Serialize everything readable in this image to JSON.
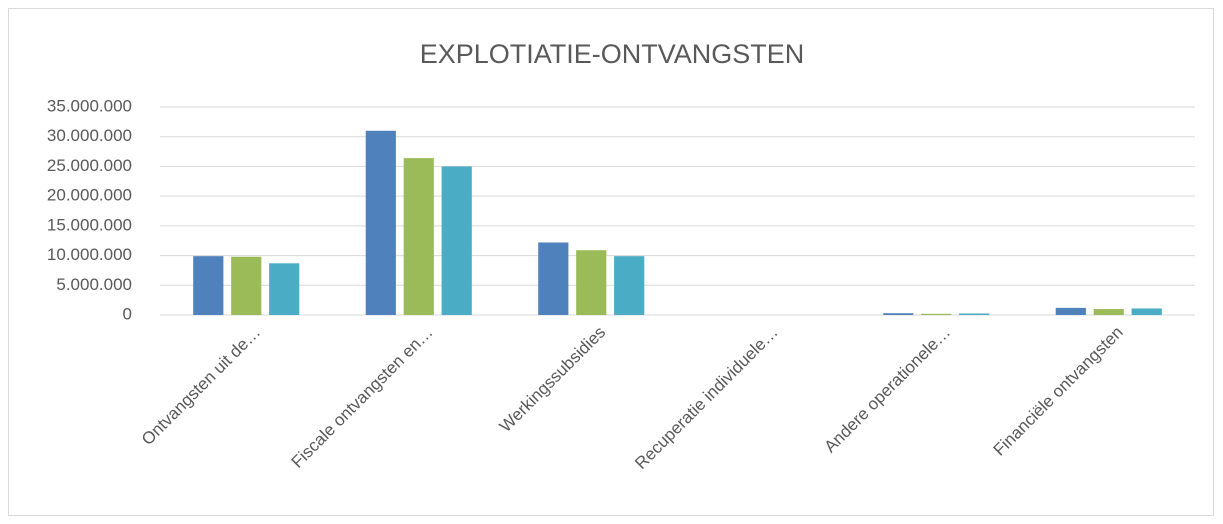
{
  "chart_data": {
    "type": "bar",
    "title": "EXPLOTIATIE-ONTVANGSTEN",
    "categories": [
      "Ontvangsten uit de…",
      "Fiscale ontvangsten en…",
      "Werkingssubsidies",
      "Recuperatie individuele…",
      "Andere operationele…",
      "Financiële ontvangsten"
    ],
    "series": [
      {
        "color": "#4f81bd",
        "values": [
          9900000,
          31000000,
          12200000,
          0,
          300000,
          1200000
        ]
      },
      {
        "color": "#9bbb59",
        "values": [
          9800000,
          26400000,
          10900000,
          0,
          200000,
          1000000
        ]
      },
      {
        "color": "#4bacc6",
        "values": [
          8700000,
          25000000,
          9900000,
          0,
          250000,
          1100000
        ]
      }
    ],
    "ylim": [
      0,
      35000000
    ],
    "yticks": [
      0,
      {
        "value": 5000000,
        "label": "5.000.000"
      },
      {
        "value": 10000000,
        "label": "10.000.000"
      },
      {
        "value": 15000000,
        "label": "15.000.000"
      },
      {
        "value": 20000000,
        "label": "20.000.000"
      },
      {
        "value": 25000000,
        "label": "25.000.000"
      },
      {
        "value": 30000000,
        "label": "30.000.000"
      },
      {
        "value": 35000000,
        "label": "35.000.000"
      }
    ],
    "grid": true
  }
}
